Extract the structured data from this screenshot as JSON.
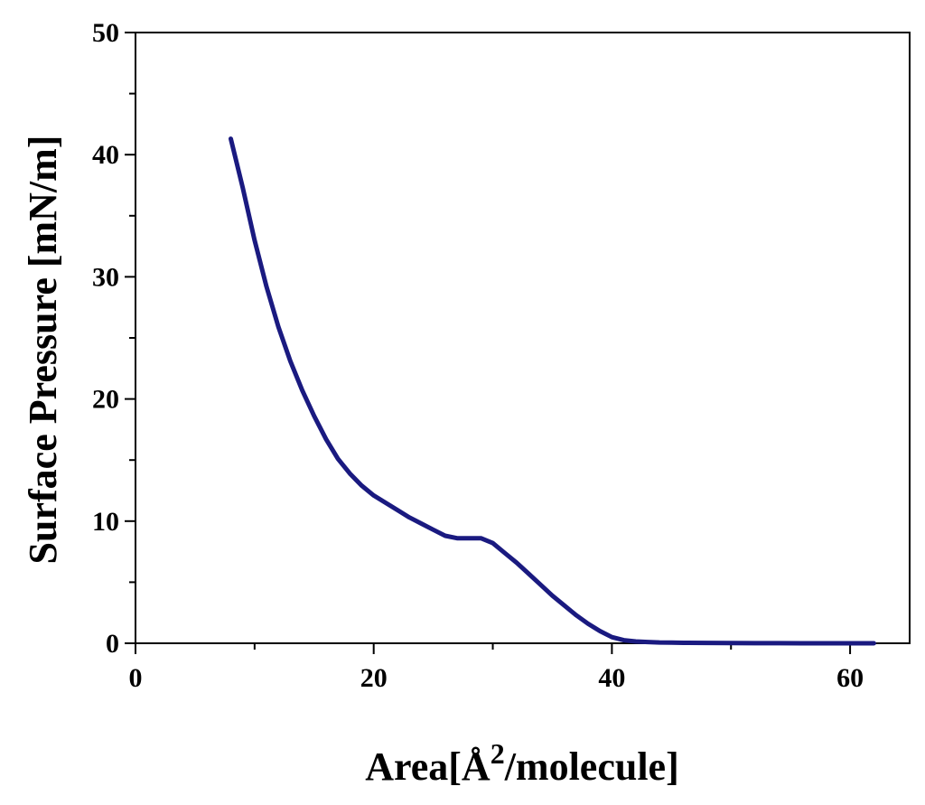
{
  "chart_data": {
    "type": "line",
    "xlabel": "Area[Å²/molecule]",
    "xlabel_parts": {
      "prefix": "Area[Å",
      "superscript": "2",
      "suffix": "/molecule]"
    },
    "ylabel": "Surface Pressure [mN/m]",
    "xlim": [
      0,
      65
    ],
    "ylim": [
      0,
      50
    ],
    "x_ticks": [
      0,
      20,
      40,
      60
    ],
    "y_ticks": [
      0,
      10,
      20,
      30,
      40,
      50
    ],
    "grid": false,
    "legend": "none",
    "series": [
      {
        "color": "#1a1a80",
        "x": [
          8,
          9,
          10,
          11,
          12,
          13,
          14,
          15,
          16,
          17,
          18,
          19,
          20,
          21,
          22,
          23,
          24,
          25,
          26,
          27,
          28,
          29,
          30,
          31,
          32,
          33,
          34,
          35,
          36,
          37,
          38,
          39,
          40,
          41,
          42,
          43,
          44,
          45,
          46,
          48,
          50,
          52,
          54,
          56,
          58,
          60,
          62
        ],
        "y": [
          41.3,
          37.3,
          33.0,
          29.2,
          25.9,
          23.1,
          20.7,
          18.6,
          16.7,
          15.1,
          13.9,
          12.9,
          12.1,
          11.5,
          10.9,
          10.3,
          9.8,
          9.3,
          8.8,
          8.6,
          8.6,
          8.6,
          8.2,
          7.4,
          6.6,
          5.7,
          4.8,
          3.9,
          3.1,
          2.3,
          1.6,
          1.0,
          0.5,
          0.25,
          0.15,
          0.1,
          0.07,
          0.05,
          0.04,
          0.03,
          0.02,
          0.01,
          0.01,
          0.0,
          0.0,
          0.0,
          0.0
        ]
      }
    ]
  }
}
